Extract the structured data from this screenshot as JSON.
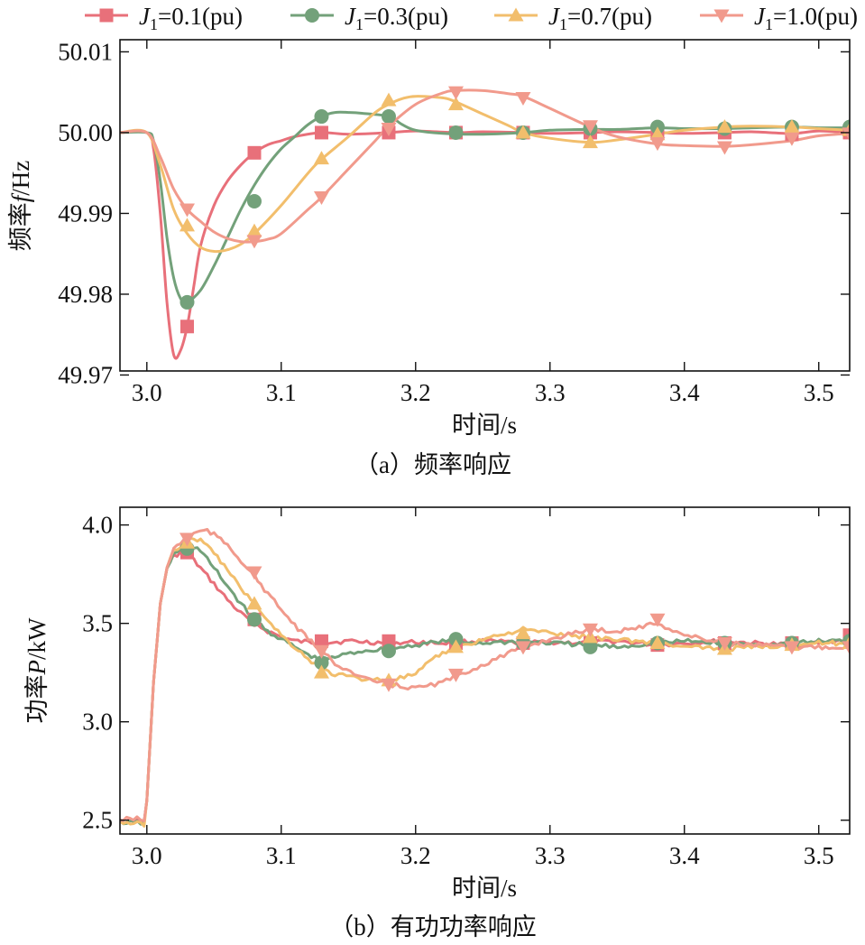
{
  "legend": [
    {
      "pre": "J",
      "sub": "1",
      "post": "=0.1(pu)",
      "color": "#e8707a",
      "marker": "square"
    },
    {
      "pre": "J",
      "sub": "1",
      "post": "=0.3(pu)",
      "color": "#73a17a",
      "marker": "circle"
    },
    {
      "pre": "J",
      "sub": "1",
      "post": "=0.7(pu)",
      "color": "#f2be6c",
      "marker": "triangle-up"
    },
    {
      "pre": "J",
      "sub": "1",
      "post": "=1.0(pu)",
      "color": "#f19a8c",
      "marker": "triangle-down"
    }
  ],
  "chart_data": [
    {
      "type": "line",
      "caption": "（a）频率响应",
      "xlabel": "时间/s",
      "ylabel": {
        "pre": "频率",
        "italic": "f",
        "post": "/Hz"
      },
      "xlim": [
        2.98,
        3.523
      ],
      "ylim": [
        49.9705,
        50.0115
      ],
      "xticks": [
        "3.0",
        "3.1",
        "3.2",
        "3.3",
        "3.4",
        "3.5"
      ],
      "yticks": [
        "49.97",
        "49.98",
        "49.99",
        "50.00",
        "50.01"
      ],
      "series": [
        {
          "name": "J1=0.1(pu)",
          "color": "#e8707a",
          "marker": "square",
          "x": [
            2.98,
            3.0,
            3.005,
            3.01,
            3.015,
            3.02,
            3.025,
            3.03,
            3.035,
            3.04,
            3.05,
            3.06,
            3.07,
            3.08,
            3.09,
            3.1,
            3.11,
            3.13,
            3.15,
            3.18,
            3.2,
            3.23,
            3.25,
            3.28,
            3.3,
            3.33,
            3.35,
            3.38,
            3.4,
            3.43,
            3.45,
            3.48,
            3.5,
            3.523
          ],
          "y": [
            50.0,
            50.0,
            49.998,
            49.99,
            49.979,
            49.9725,
            49.973,
            49.976,
            49.981,
            49.986,
            49.991,
            49.994,
            49.996,
            49.9975,
            49.9985,
            49.999,
            49.9995,
            50.0,
            49.9998,
            50.0,
            50.0002,
            50.0,
            50.0001,
            50.0,
            49.9999,
            50.0,
            50.0001,
            50.0,
            49.9999,
            50.0,
            50.0001,
            49.9999,
            50.0002,
            50.0
          ],
          "marker_x": [
            3.03,
            3.08,
            3.13,
            3.18,
            3.23,
            3.28,
            3.33,
            3.38,
            3.43,
            3.48,
            3.523
          ],
          "marker_y": [
            49.976,
            49.9975,
            50.0,
            50.0,
            50.0,
            50.0,
            50.0,
            50.0,
            50.0,
            49.9998,
            50.0
          ]
        },
        {
          "name": "J1=0.3(pu)",
          "color": "#73a17a",
          "marker": "circle",
          "x": [
            2.98,
            3.0,
            3.005,
            3.01,
            3.015,
            3.02,
            3.025,
            3.03,
            3.04,
            3.05,
            3.06,
            3.07,
            3.08,
            3.09,
            3.1,
            3.11,
            3.12,
            3.13,
            3.14,
            3.15,
            3.16,
            3.18,
            3.19,
            3.2,
            3.22,
            3.25,
            3.28,
            3.3,
            3.33,
            3.35,
            3.38,
            3.4,
            3.43,
            3.45,
            3.48,
            3.5,
            3.523
          ],
          "y": [
            50.0,
            50.0,
            49.999,
            49.994,
            49.987,
            49.982,
            49.9795,
            49.979,
            49.9805,
            49.9835,
            49.987,
            49.9905,
            49.9935,
            49.996,
            49.998,
            49.9995,
            50.001,
            50.002,
            50.0025,
            50.0025,
            50.0024,
            50.002,
            50.001,
            50.0003,
            49.9999,
            49.9998,
            50.0,
            50.0003,
            50.0004,
            50.0004,
            50.0006,
            50.0005,
            50.0005,
            50.0006,
            50.0007,
            50.0006,
            50.0006
          ],
          "marker_x": [
            3.03,
            3.08,
            3.13,
            3.18,
            3.23,
            3.28,
            3.33,
            3.38,
            3.43,
            3.48,
            3.523
          ],
          "marker_y": [
            49.979,
            49.9915,
            50.002,
            50.002,
            50.0,
            50.0,
            50.0005,
            50.0007,
            50.0005,
            50.0007,
            50.0007
          ]
        },
        {
          "name": "J1=0.7(pu)",
          "color": "#f2be6c",
          "marker": "triangle-up",
          "x": [
            2.98,
            3.0,
            3.01,
            3.02,
            3.03,
            3.04,
            3.05,
            3.06,
            3.07,
            3.08,
            3.1,
            3.12,
            3.13,
            3.15,
            3.17,
            3.18,
            3.19,
            3.2,
            3.22,
            3.23,
            3.25,
            3.27,
            3.28,
            3.3,
            3.33,
            3.35,
            3.38,
            3.4,
            3.43,
            3.45,
            3.48,
            3.5,
            3.523
          ],
          "y": [
            50.0,
            50.0,
            49.996,
            49.9905,
            49.9875,
            49.9858,
            49.9853,
            49.9855,
            49.9862,
            49.9875,
            49.991,
            49.995,
            49.9967,
            49.9995,
            50.0025,
            50.0035,
            50.0042,
            50.0045,
            50.0043,
            50.0038,
            50.0023,
            50.0008,
            50.0,
            49.9993,
            49.9988,
            49.9991,
            49.9998,
            50.0003,
            50.0007,
            50.0008,
            50.0007,
            50.0005,
            50.0003
          ],
          "marker_x": [
            3.03,
            3.08,
            3.13,
            3.18,
            3.23,
            3.28,
            3.33,
            3.38,
            3.43,
            3.48,
            3.523
          ],
          "marker_y": [
            49.9885,
            49.9878,
            49.9968,
            50.004,
            50.0035,
            50.0,
            49.9988,
            49.9998,
            50.0007,
            50.0007,
            50.0003
          ]
        },
        {
          "name": "J1=1.0(pu)",
          "color": "#f19a8c",
          "marker": "triangle-down",
          "x": [
            2.98,
            3.0,
            3.01,
            3.02,
            3.03,
            3.04,
            3.05,
            3.06,
            3.07,
            3.08,
            3.09,
            3.1,
            3.12,
            3.13,
            3.15,
            3.17,
            3.18,
            3.2,
            3.22,
            3.23,
            3.25,
            3.27,
            3.28,
            3.3,
            3.33,
            3.35,
            3.38,
            3.4,
            3.43,
            3.45,
            3.48,
            3.5,
            3.523
          ],
          "y": [
            50.0,
            50.0,
            49.997,
            49.993,
            49.9905,
            49.989,
            49.9877,
            49.9869,
            49.9865,
            49.9865,
            49.9868,
            49.9875,
            49.9905,
            49.992,
            49.9955,
            49.999,
            50.0008,
            50.0035,
            50.0049,
            50.0052,
            50.0052,
            50.0048,
            50.0045,
            50.003,
            50.0007,
            49.9995,
            49.9986,
            49.9984,
            49.9983,
            49.9985,
            49.999,
            49.9996,
            49.9999
          ],
          "marker_x": [
            3.03,
            3.08,
            3.13,
            3.18,
            3.23,
            3.28,
            3.33,
            3.38,
            3.43,
            3.48,
            3.523
          ],
          "marker_y": [
            49.9905,
            49.9866,
            49.992,
            50.0005,
            50.005,
            50.0043,
            50.0008,
            49.9987,
            49.9982,
            49.9993,
            49.9999
          ]
        }
      ]
    },
    {
      "type": "line",
      "caption": "（b）有功功率响应",
      "xlabel": "时间/s",
      "ylabel": {
        "pre": "功率",
        "italic": "P",
        "post": "/kW"
      },
      "xlim": [
        2.98,
        3.523
      ],
      "ylim": [
        2.43,
        4.09
      ],
      "xticks": [
        "3.0",
        "3.1",
        "3.2",
        "3.3",
        "3.4",
        "3.5"
      ],
      "yticks": [
        "2.5",
        "3.0",
        "3.5",
        "4.0"
      ],
      "series": [
        {
          "name": "J1=0.1(pu)",
          "color": "#e8707a",
          "marker": "square",
          "x": [
            2.98,
            2.99,
            2.998,
            3.0,
            3.005,
            3.01,
            3.015,
            3.02,
            3.025,
            3.03,
            3.035,
            3.04,
            3.05,
            3.06,
            3.07,
            3.08,
            3.09,
            3.1,
            3.11,
            3.12,
            3.13,
            3.15,
            3.18,
            3.2,
            3.22,
            3.25,
            3.28,
            3.3,
            3.33,
            3.35,
            3.38,
            3.4,
            3.43,
            3.45,
            3.48,
            3.5,
            3.523
          ],
          "y": [
            2.51,
            2.5,
            2.49,
            2.6,
            3.2,
            3.6,
            3.78,
            3.84,
            3.86,
            3.85,
            3.82,
            3.78,
            3.7,
            3.62,
            3.55,
            3.5,
            3.46,
            3.43,
            3.41,
            3.405,
            3.4,
            3.41,
            3.4,
            3.405,
            3.4,
            3.41,
            3.4,
            3.405,
            3.4,
            3.41,
            3.39,
            3.4,
            3.41,
            3.4,
            3.39,
            3.4,
            3.42
          ],
          "marker_x": [
            3.03,
            3.08,
            3.13,
            3.18,
            3.23,
            3.28,
            3.33,
            3.38,
            3.43,
            3.48,
            3.523
          ],
          "marker_y": [
            3.86,
            3.52,
            3.41,
            3.41,
            3.4,
            3.4,
            3.4,
            3.39,
            3.4,
            3.4,
            3.44
          ]
        },
        {
          "name": "J1=0.3(pu)",
          "color": "#73a17a",
          "marker": "circle",
          "x": [
            2.98,
            2.998,
            3.0,
            3.005,
            3.01,
            3.015,
            3.02,
            3.03,
            3.035,
            3.04,
            3.05,
            3.06,
            3.07,
            3.08,
            3.09,
            3.1,
            3.11,
            3.12,
            3.13,
            3.14,
            3.16,
            3.18,
            3.2,
            3.22,
            3.25,
            3.28,
            3.3,
            3.33,
            3.35,
            3.38,
            3.4,
            3.43,
            3.45,
            3.48,
            3.5,
            3.523
          ],
          "y": [
            2.49,
            2.485,
            2.6,
            3.2,
            3.6,
            3.78,
            3.85,
            3.89,
            3.89,
            3.87,
            3.78,
            3.69,
            3.6,
            3.52,
            3.46,
            3.42,
            3.38,
            3.34,
            3.31,
            3.33,
            3.36,
            3.37,
            3.39,
            3.41,
            3.4,
            3.41,
            3.4,
            3.39,
            3.38,
            3.4,
            3.41,
            3.4,
            3.39,
            3.4,
            3.41,
            3.41
          ],
          "marker_x": [
            3.03,
            3.08,
            3.13,
            3.18,
            3.23,
            3.28,
            3.33,
            3.38,
            3.43,
            3.48,
            3.523
          ],
          "marker_y": [
            3.88,
            3.52,
            3.3,
            3.36,
            3.42,
            3.4,
            3.38,
            3.4,
            3.4,
            3.4,
            3.41
          ]
        },
        {
          "name": "J1=0.7(pu)",
          "color": "#f2be6c",
          "marker": "triangle-up",
          "x": [
            2.98,
            2.998,
            3.0,
            3.005,
            3.01,
            3.015,
            3.02,
            3.03,
            3.035,
            3.04,
            3.05,
            3.06,
            3.07,
            3.08,
            3.09,
            3.1,
            3.11,
            3.12,
            3.13,
            3.14,
            3.16,
            3.18,
            3.2,
            3.21,
            3.22,
            3.25,
            3.28,
            3.3,
            3.33,
            3.35,
            3.38,
            3.4,
            3.43,
            3.45,
            3.48,
            3.5,
            3.523
          ],
          "y": [
            2.49,
            2.48,
            2.6,
            3.2,
            3.6,
            3.78,
            3.87,
            3.92,
            3.93,
            3.92,
            3.86,
            3.77,
            3.68,
            3.6,
            3.52,
            3.44,
            3.38,
            3.32,
            3.27,
            3.24,
            3.22,
            3.21,
            3.24,
            3.3,
            3.35,
            3.42,
            3.47,
            3.45,
            3.43,
            3.42,
            3.4,
            3.38,
            3.37,
            3.38,
            3.39,
            3.4,
            3.4
          ],
          "marker_x": [
            3.03,
            3.08,
            3.13,
            3.18,
            3.23,
            3.28,
            3.33,
            3.38,
            3.43,
            3.48,
            3.523
          ],
          "marker_y": [
            3.91,
            3.6,
            3.25,
            3.21,
            3.38,
            3.45,
            3.43,
            3.4,
            3.37,
            3.39,
            3.4
          ]
        },
        {
          "name": "J1=1.0(pu)",
          "color": "#f19a8c",
          "marker": "triangle-down",
          "x": [
            2.98,
            2.99,
            2.998,
            3.0,
            3.005,
            3.01,
            3.015,
            3.02,
            3.03,
            3.04,
            3.045,
            3.05,
            3.06,
            3.07,
            3.08,
            3.09,
            3.1,
            3.11,
            3.12,
            3.13,
            3.14,
            3.16,
            3.18,
            3.2,
            3.22,
            3.24,
            3.26,
            3.28,
            3.3,
            3.33,
            3.35,
            3.38,
            3.4,
            3.43,
            3.45,
            3.48,
            3.5,
            3.523
          ],
          "y": [
            2.5,
            2.51,
            2.5,
            2.6,
            3.2,
            3.6,
            3.78,
            3.88,
            3.94,
            3.97,
            3.97,
            3.95,
            3.9,
            3.82,
            3.74,
            3.65,
            3.57,
            3.49,
            3.42,
            3.36,
            3.3,
            3.22,
            3.19,
            3.17,
            3.2,
            3.26,
            3.32,
            3.38,
            3.42,
            3.47,
            3.46,
            3.5,
            3.44,
            3.4,
            3.39,
            3.38,
            3.38,
            3.38
          ],
          "marker_x": [
            3.03,
            3.08,
            3.13,
            3.18,
            3.23,
            3.28,
            3.33,
            3.38,
            3.43,
            3.48,
            3.523
          ],
          "marker_y": [
            3.93,
            3.76,
            3.36,
            3.19,
            3.24,
            3.38,
            3.47,
            3.52,
            3.4,
            3.38,
            3.38
          ]
        }
      ]
    }
  ]
}
